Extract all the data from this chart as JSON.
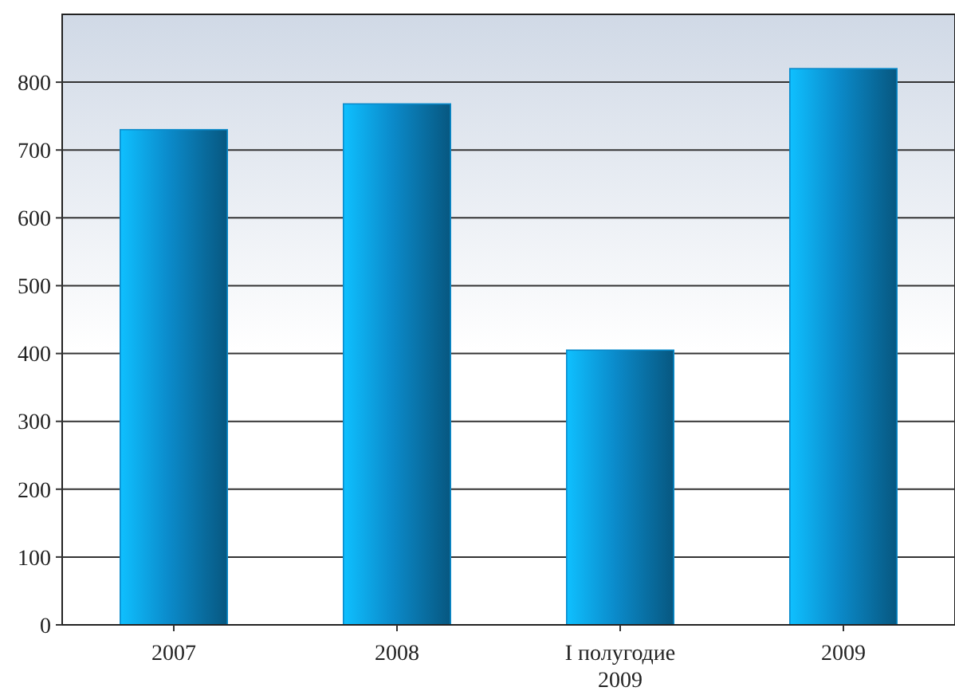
{
  "chart_data": {
    "type": "bar",
    "categories": [
      "2007",
      "2008",
      "I полугодие\n2009",
      "2009"
    ],
    "values": [
      730,
      768,
      405,
      820
    ],
    "color": "#0b8bcb",
    "ylim": [
      0,
      900
    ],
    "yticks": [
      0,
      100,
      200,
      300,
      400,
      500,
      600,
      700,
      800
    ],
    "grid": "y"
  }
}
